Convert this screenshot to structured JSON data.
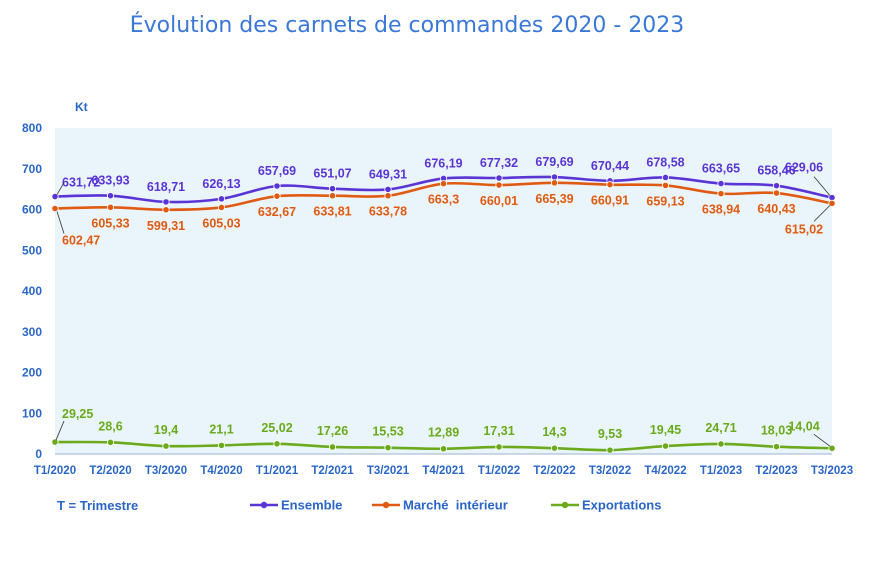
{
  "chart_data": {
    "type": "line",
    "title": "Évolution des carnets de commandes 2020 - 2023",
    "ylabel": "Kt",
    "xlabel": "",
    "ylim": [
      0,
      800
    ],
    "yticks": [
      "0",
      "100",
      "200",
      "300",
      "400",
      "500",
      "600",
      "700",
      "800"
    ],
    "grid": false,
    "legend_placement": "bottom",
    "note": "T = Trimestre",
    "categories": [
      "T1/2020",
      "T2/2020",
      "T3/2020",
      "T4/2020",
      "T1/2021",
      "T2/2021",
      "T3/2021",
      "T4/2021",
      "T1/2022",
      "T2/2022",
      "T3/2022",
      "T4/2022",
      "T1/2023",
      "T2/2023",
      "T3/2023"
    ],
    "series": [
      {
        "name": "Ensemble",
        "color": "#5a35d6",
        "values": [
          631.72,
          633.93,
          618.71,
          626.13,
          657.69,
          651.07,
          649.31,
          676.19,
          677.32,
          679.69,
          670.44,
          678.58,
          663.65,
          658.46,
          629.06
        ],
        "labels": [
          "631,72",
          "633,93",
          "618,71",
          "626,13",
          "657,69",
          "651,07",
          "649,31",
          "676,19",
          "677,32",
          "679,69",
          "670,44",
          "678,58",
          "663,65",
          "658,46",
          "629,06"
        ]
      },
      {
        "name": "Marché  intérieur",
        "color": "#e05a12",
        "values": [
          602.47,
          605.33,
          599.31,
          605.03,
          632.67,
          633.81,
          633.78,
          663.3,
          660.01,
          665.39,
          660.91,
          659.13,
          638.94,
          640.43,
          615.02
        ],
        "labels": [
          "602,47",
          "605,33",
          "599,31",
          "605,03",
          "632,67",
          "633,81",
          "633,78",
          "663,3",
          "660,01",
          "665,39",
          "660,91",
          "659,13",
          "638,94",
          "640,43",
          "615,02"
        ]
      },
      {
        "name": "Exportations",
        "color": "#6aaa1c",
        "values": [
          29.25,
          28.6,
          19.4,
          21.1,
          25.02,
          17.26,
          15.53,
          12.89,
          17.31,
          14.3,
          9.53,
          19.45,
          24.71,
          18.03,
          14.04
        ],
        "labels": [
          "29,25",
          "28,6",
          "19,4",
          "21,1",
          "25,02",
          "17,26",
          "15,53",
          "12,89",
          "17,31",
          "14,3",
          "9,53",
          "19,45",
          "24,71",
          "18,03",
          "14,04"
        ]
      }
    ]
  }
}
